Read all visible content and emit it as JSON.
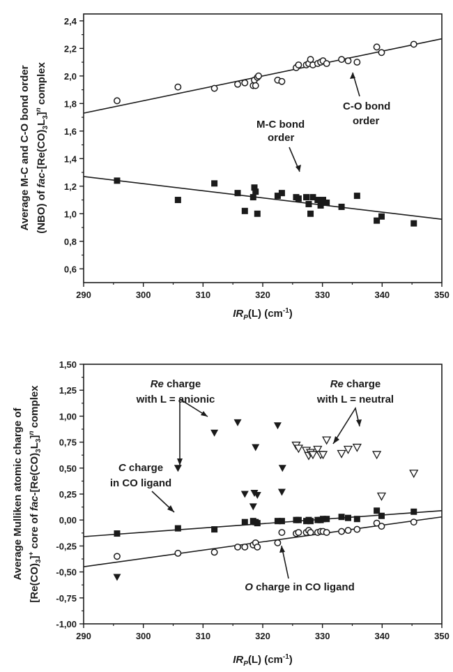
{
  "chart_data": [
    {
      "type": "scatter",
      "xlabel": {
        "italic": "IR",
        "sub": "P",
        "rest": "(L) (cm",
        "sup": "-1",
        "close": ")"
      },
      "ylabel_line1": "Average M-C and C-O bond order",
      "ylabel_line2": {
        "a": "(NBO) of ",
        "b": "fac",
        "c": "-[Re(CO)",
        "d": "3",
        "e": "L",
        "f": "3",
        "g": "]",
        "h": "n",
        "i": " complex"
      },
      "xlim": [
        290,
        350
      ],
      "ylim": [
        0.5,
        2.45
      ],
      "x_ticks": [
        290,
        300,
        310,
        320,
        330,
        340,
        350
      ],
      "x_tick_labels": [
        "290",
        "300",
        "310",
        "320",
        "330",
        "340",
        "350"
      ],
      "y_ticks": [
        0.6,
        0.8,
        1.0,
        1.2,
        1.4,
        1.6,
        1.8,
        2.0,
        2.2,
        2.4
      ],
      "y_tick_labels": [
        "0,6",
        "0,8",
        "1,0",
        "1,2",
        "1,4",
        "1,6",
        "1,8",
        "2,0",
        "2,2",
        "2,4"
      ],
      "series": [
        {
          "marker": "open-circle",
          "points": [
            [
              295.6,
              1.82
            ],
            [
              305.8,
              1.92
            ],
            [
              311.9,
              1.91
            ],
            [
              315.8,
              1.94
            ],
            [
              317.0,
              1.95
            ],
            [
              318.4,
              1.93
            ],
            [
              318.6,
              1.97
            ],
            [
              318.8,
              1.93
            ],
            [
              319.1,
              1.99
            ],
            [
              319.3,
              2.0
            ],
            [
              322.5,
              1.97
            ],
            [
              323.2,
              1.96
            ],
            [
              325.6,
              2.06
            ],
            [
              326.0,
              2.08
            ],
            [
              327.3,
              2.08
            ],
            [
              327.7,
              2.09
            ],
            [
              328.0,
              2.12
            ],
            [
              328.4,
              2.08
            ],
            [
              329.2,
              2.09
            ],
            [
              329.7,
              2.1
            ],
            [
              330.1,
              2.11
            ],
            [
              330.7,
              2.09
            ],
            [
              333.2,
              2.12
            ],
            [
              334.3,
              2.11
            ],
            [
              335.8,
              2.1
            ],
            [
              339.1,
              2.21
            ],
            [
              339.9,
              2.17
            ],
            [
              345.3,
              2.23
            ]
          ]
        },
        {
          "marker": "filled-square",
          "points": [
            [
              295.6,
              1.24
            ],
            [
              305.8,
              1.1
            ],
            [
              311.9,
              1.22
            ],
            [
              315.8,
              1.15
            ],
            [
              317.0,
              1.02
            ],
            [
              318.4,
              1.12
            ],
            [
              318.6,
              1.19
            ],
            [
              318.8,
              1.16
            ],
            [
              319.1,
              1.0
            ],
            [
              322.5,
              1.13
            ],
            [
              323.2,
              1.15
            ],
            [
              325.6,
              1.12
            ],
            [
              326.0,
              1.11
            ],
            [
              327.3,
              1.12
            ],
            [
              327.7,
              1.07
            ],
            [
              328.0,
              1.0
            ],
            [
              328.4,
              1.12
            ],
            [
              329.2,
              1.1
            ],
            [
              329.7,
              1.06
            ],
            [
              330.1,
              1.1
            ],
            [
              330.7,
              1.08
            ],
            [
              333.2,
              1.05
            ],
            [
              335.8,
              1.13
            ],
            [
              339.1,
              0.95
            ],
            [
              339.9,
              0.98
            ],
            [
              345.3,
              0.93
            ]
          ]
        }
      ],
      "fit_lines": [
        {
          "x": [
            290,
            350
          ],
          "y": [
            1.73,
            2.27
          ]
        },
        {
          "x": [
            290,
            350
          ],
          "y": [
            1.27,
            0.96
          ]
        }
      ],
      "annotations": [
        {
          "lines": [
            "C-O bond",
            "order"
          ]
        },
        {
          "lines": [
            "M-C bond",
            "order"
          ]
        }
      ]
    },
    {
      "type": "scatter",
      "xlabel": {
        "italic": "IR",
        "sub": "P",
        "rest": "(L) (cm",
        "sup": "-1",
        "close": ")"
      },
      "ylabel_line1": "Average Mulliken atomic charge of",
      "ylabel_line2": {
        "a": "[Re(CO)",
        "b": "3",
        "c": "]",
        "d": "+",
        "e": " core of ",
        "f": "fac",
        "g": "-[Re(CO)",
        "h": "3",
        "i": "L",
        "j": "3",
        "k": "]",
        "l": "n",
        "m": " complex"
      },
      "xlim": [
        290,
        350
      ],
      "ylim": [
        -1.0,
        1.5
      ],
      "x_ticks": [
        290,
        300,
        310,
        320,
        330,
        340,
        350
      ],
      "x_tick_labels": [
        "290",
        "300",
        "310",
        "320",
        "330",
        "340",
        "350"
      ],
      "y_ticks": [
        -1.0,
        -0.75,
        -0.5,
        -0.25,
        0.0,
        0.25,
        0.5,
        0.75,
        1.0,
        1.25,
        1.5
      ],
      "y_tick_labels": [
        "-1,00",
        "-0,75",
        "-0,50",
        "-0,25",
        "0,00",
        "0,25",
        "0,50",
        "0,75",
        "1,00",
        "1,25",
        "1,50"
      ],
      "series": [
        {
          "marker": "filled-down-triangle",
          "points": [
            [
              295.6,
              -0.55
            ],
            [
              305.8,
              0.5
            ],
            [
              311.9,
              0.84
            ],
            [
              315.8,
              0.94
            ],
            [
              317.0,
              0.25
            ],
            [
              318.4,
              0.13
            ],
            [
              318.6,
              0.26
            ],
            [
              318.8,
              0.7
            ],
            [
              319.1,
              0.24
            ],
            [
              322.5,
              0.91
            ],
            [
              323.2,
              0.27
            ],
            [
              323.3,
              0.5
            ]
          ]
        },
        {
          "marker": "open-down-triangle",
          "points": [
            [
              325.6,
              0.72
            ],
            [
              326.0,
              0.69
            ],
            [
              327.3,
              0.67
            ],
            [
              327.7,
              0.62
            ],
            [
              328.0,
              0.65
            ],
            [
              328.4,
              0.63
            ],
            [
              329.2,
              0.68
            ],
            [
              329.7,
              0.63
            ],
            [
              330.1,
              0.63
            ],
            [
              330.7,
              0.77
            ],
            [
              333.2,
              0.64
            ],
            [
              334.3,
              0.68
            ],
            [
              335.8,
              0.7
            ],
            [
              339.1,
              0.63
            ],
            [
              339.9,
              0.23
            ],
            [
              345.3,
              0.45
            ]
          ]
        },
        {
          "marker": "filled-square",
          "points": [
            [
              295.6,
              -0.13
            ],
            [
              305.8,
              -0.08
            ],
            [
              311.9,
              -0.09
            ],
            [
              317.0,
              -0.02
            ],
            [
              318.4,
              -0.01
            ],
            [
              318.8,
              -0.02
            ],
            [
              319.1,
              -0.03
            ],
            [
              322.5,
              -0.01
            ],
            [
              323.2,
              -0.01
            ],
            [
              325.6,
              0.0
            ],
            [
              326.0,
              0.0
            ],
            [
              327.3,
              -0.01
            ],
            [
              327.7,
              0.0
            ],
            [
              328.0,
              -0.01
            ],
            [
              329.2,
              0.0
            ],
            [
              329.7,
              0.0
            ],
            [
              330.1,
              0.01
            ],
            [
              330.7,
              0.01
            ],
            [
              333.2,
              0.03
            ],
            [
              334.3,
              0.02
            ],
            [
              335.8,
              0.01
            ],
            [
              339.1,
              0.09
            ],
            [
              339.9,
              0.04
            ],
            [
              345.3,
              0.08
            ]
          ]
        },
        {
          "marker": "open-circle",
          "points": [
            [
              295.6,
              -0.35
            ],
            [
              305.8,
              -0.32
            ],
            [
              311.9,
              -0.31
            ],
            [
              315.8,
              -0.26
            ],
            [
              317.0,
              -0.26
            ],
            [
              318.4,
              -0.24
            ],
            [
              318.8,
              -0.22
            ],
            [
              319.1,
              -0.26
            ],
            [
              322.5,
              -0.22
            ],
            [
              323.2,
              -0.12
            ],
            [
              325.6,
              -0.13
            ],
            [
              326.0,
              -0.12
            ],
            [
              327.3,
              -0.12
            ],
            [
              327.7,
              -0.1
            ],
            [
              328.0,
              -0.12
            ],
            [
              329.2,
              -0.12
            ],
            [
              329.7,
              -0.11
            ],
            [
              330.1,
              -0.11
            ],
            [
              330.7,
              -0.12
            ],
            [
              333.2,
              -0.11
            ],
            [
              334.3,
              -0.1
            ],
            [
              335.8,
              -0.09
            ],
            [
              339.1,
              -0.03
            ],
            [
              339.9,
              -0.06
            ],
            [
              345.3,
              -0.02
            ]
          ]
        }
      ],
      "fit_lines": [
        {
          "x": [
            290,
            350
          ],
          "y": [
            -0.16,
            0.09
          ]
        },
        {
          "x": [
            290,
            350
          ],
          "y": [
            -0.45,
            0.03
          ]
        }
      ],
      "annotations": [
        {
          "italic": "Re",
          "rest": " charge",
          "line2": "with L = anionic"
        },
        {
          "italic": "Re",
          "rest": " charge",
          "line2": "with L = neutral"
        },
        {
          "italic": "C",
          "rest": " charge",
          "line2": "in CO ligand"
        },
        {
          "italic": "O",
          "rest": " charge in CO ligand"
        }
      ]
    }
  ]
}
